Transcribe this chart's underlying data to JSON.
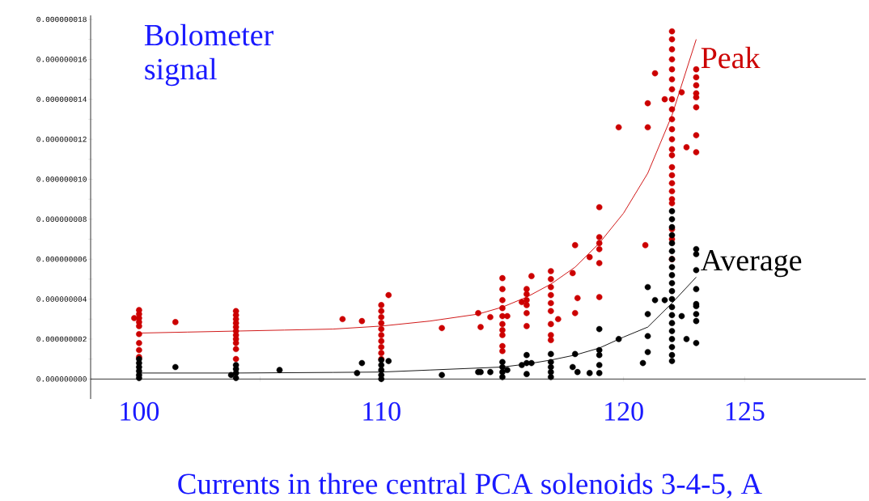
{
  "chart_data": {
    "type": "scatter",
    "annotations": [
      "Bolometer signal"
    ],
    "xlabel": "Currents in three central PCA solenoids 3-4-5, A",
    "xlim": [
      98,
      130
    ],
    "ylim": [
      -1e-09,
      1.82e-08
    ],
    "xticks": [
      100,
      {
        "value": 105,
        "label": null
      },
      110,
      {
        "value": 115,
        "label": null
      },
      120,
      125
    ],
    "yticks": [
      {
        "value": 0,
        "label": "0.000000000"
      },
      {
        "value": 1e-09,
        "label": null
      },
      {
        "value": 2e-09,
        "label": "0.000000002"
      },
      {
        "value": 3e-09,
        "label": null
      },
      {
        "value": 4e-09,
        "label": "0.000000004"
      },
      {
        "value": 5e-09,
        "label": null
      },
      {
        "value": 6e-09,
        "label": "0.000000006"
      },
      {
        "value": 7e-09,
        "label": null
      },
      {
        "value": 8e-09,
        "label": "0.000000008"
      },
      {
        "value": 9e-09,
        "label": null
      },
      {
        "value": 1e-08,
        "label": "0.000000010"
      },
      {
        "value": 1.1e-08,
        "label": null
      },
      {
        "value": 1.2e-08,
        "label": "0.000000012"
      },
      {
        "value": 1.3e-08,
        "label": null
      },
      {
        "value": 1.4e-08,
        "label": "0.000000014"
      },
      {
        "value": 1.5e-08,
        "label": null
      },
      {
        "value": 1.6e-08,
        "label": "0.000000016"
      },
      {
        "value": 1.7e-08,
        "label": null
      },
      {
        "value": 1.8e-08,
        "label": "0.000000018"
      }
    ],
    "series": [
      {
        "name": "Peak",
        "color": "#cc0000",
        "marker": "circle",
        "x": [
          100,
          100,
          100,
          100,
          100,
          100,
          100,
          100,
          100,
          99.8,
          101.5,
          104,
          104,
          104,
          104,
          104,
          104,
          104,
          104,
          104,
          104,
          104,
          108.4,
          109.2,
          110,
          110,
          110,
          110,
          110,
          110,
          110,
          110,
          110,
          110,
          110.3,
          112.5,
          114.0,
          114.1,
          114.5,
          115,
          115,
          115,
          115,
          115,
          115,
          115,
          115,
          115,
          115,
          115.2,
          116,
          116,
          116,
          116,
          116,
          116,
          116.2,
          115.8,
          117,
          117,
          117,
          117,
          117,
          117,
          117,
          117,
          117,
          117.3,
          118.0,
          118.0,
          117.9,
          118.1,
          118.6,
          119,
          119,
          119,
          119,
          119,
          119,
          119.8,
          120.9,
          121.0,
          121.0,
          121.3,
          121.7,
          122.4,
          122.6,
          122,
          122,
          122,
          122,
          122,
          122,
          122,
          122,
          122,
          122,
          122,
          122,
          122,
          122,
          122,
          122,
          122,
          122,
          122,
          122,
          122,
          122,
          122,
          123,
          123,
          123,
          123,
          123,
          123,
          123,
          123
        ],
        "values": [
          3.45e-09,
          3.25e-09,
          3.05e-09,
          2.85e-09,
          2.65e-09,
          2.25e-09,
          1.8e-09,
          1.45e-09,
          1.1e-09,
          3.05e-09,
          2.85e-09,
          3.4e-09,
          3.2e-09,
          3e-09,
          2.8e-09,
          2.6e-09,
          2.4e-09,
          2.2e-09,
          2e-09,
          1.8e-09,
          1.5e-09,
          1e-09,
          3e-09,
          2.9e-09,
          3.7e-09,
          3.4e-09,
          3.1e-09,
          2.8e-09,
          2.5e-09,
          2.2e-09,
          1.9e-09,
          1.6e-09,
          1.3e-09,
          1e-09,
          4.2e-09,
          2.55e-09,
          3.3e-09,
          2.6e-09,
          3.1e-09,
          5.05e-09,
          4.5e-09,
          3.95e-09,
          3.55e-09,
          3.15e-09,
          2.75e-09,
          2.45e-09,
          2.2e-09,
          1.65e-09,
          1.4e-09,
          3.15e-09,
          4.5e-09,
          4.25e-09,
          3.95e-09,
          3.7e-09,
          3.3e-09,
          2.65e-09,
          5.15e-09,
          3.85e-09,
          5.4e-09,
          5e-09,
          4.6e-09,
          4.2e-09,
          3.8e-09,
          3.4e-09,
          2.75e-09,
          2.2e-09,
          1.95e-09,
          3e-09,
          6.7e-09,
          3.3e-09,
          5.3e-09,
          4.05e-09,
          6.1e-09,
          8.6e-09,
          7.1e-09,
          6.8e-09,
          6.5e-09,
          5.8e-09,
          4.1e-09,
          1.26e-08,
          6.7e-09,
          1.38e-08,
          1.26e-08,
          1.53e-08,
          1.4e-08,
          1.435e-08,
          1.16e-08,
          1.74e-08,
          1.7e-08,
          1.65e-08,
          1.6e-08,
          1.55e-08,
          1.5e-08,
          1.45e-08,
          1.4e-08,
          1.35e-08,
          1.3e-08,
          1.25e-08,
          1.2e-08,
          1.15e-08,
          1.12e-08,
          1.06e-08,
          1.02e-08,
          9.8e-09,
          9.4e-09,
          9e-09,
          8.8e-09,
          7.5e-09,
          7e-09,
          6e-09,
          1.55e-08,
          1.51e-08,
          1.47e-08,
          1.43e-08,
          1.41e-08,
          1.36e-08,
          1.22e-08,
          1.135e-08
        ]
      },
      {
        "name": "Average",
        "color": "#000000",
        "marker": "circle",
        "x": [
          100,
          100,
          100,
          100,
          100,
          100,
          101.5,
          104,
          104,
          104,
          104,
          103.8,
          105.8,
          109.0,
          109.2,
          110,
          110,
          110,
          110,
          110,
          110.3,
          112.5,
          114.0,
          114.1,
          114.5,
          115,
          115,
          115,
          115,
          115.2,
          116,
          116,
          116,
          115.8,
          116.2,
          117,
          117,
          117,
          117,
          117,
          118.0,
          117.9,
          118.1,
          118.6,
          119,
          119,
          119,
          119,
          119,
          119.8,
          120.8,
          121.0,
          121.0,
          121.0,
          121.0,
          121.3,
          121.7,
          122.4,
          122.6,
          122,
          122,
          122,
          122,
          122,
          122,
          122,
          122,
          122,
          122,
          122,
          122,
          122,
          122,
          122,
          122,
          122,
          122,
          122,
          122,
          123,
          123,
          123,
          123,
          123,
          123,
          123,
          123,
          123
        ],
        "values": [
          1e-09,
          8e-10,
          6e-10,
          4e-10,
          2e-10,
          5e-11,
          6e-10,
          7e-10,
          5e-10,
          3e-10,
          5e-11,
          2e-10,
          4.5e-10,
          3e-10,
          8e-10,
          9.5e-10,
          7e-10,
          4.5e-10,
          2e-10,
          0,
          9e-10,
          2e-10,
          3.5e-10,
          3.5e-10,
          3.5e-10,
          8.5e-10,
          6e-10,
          3.5e-10,
          1e-10,
          4.5e-10,
          1.2e-09,
          8e-10,
          2.5e-10,
          7e-10,
          8e-10,
          1.25e-09,
          8.5e-10,
          6e-10,
          3.5e-10,
          1e-10,
          1.25e-09,
          6e-10,
          3.5e-10,
          3e-10,
          2.5e-09,
          1.45e-09,
          1.2e-09,
          7e-10,
          3e-10,
          2e-09,
          8e-10,
          4.6e-09,
          3.25e-09,
          2.15e-09,
          1.35e-09,
          3.95e-09,
          3.95e-09,
          3.15e-09,
          2e-09,
          8.4e-09,
          8e-09,
          7.6e-09,
          7.2e-09,
          6.8e-09,
          6.4e-09,
          6e-09,
          5.6e-09,
          5.2e-09,
          4.8e-09,
          4.4e-09,
          4e-09,
          3.6e-09,
          3.2e-09,
          2.8e-09,
          2.4e-09,
          2e-09,
          1.6e-09,
          1.2e-09,
          9e-10,
          6.5e-09,
          6.25e-09,
          5.45e-09,
          4.5e-09,
          3.75e-09,
          3.65e-09,
          3.25e-09,
          2.9e-09,
          1.8e-09
        ]
      },
      {
        "type": "line",
        "color": "#cc0000",
        "marker": "none",
        "x": [
          100,
          102,
          104,
          106,
          108,
          110,
          112,
          114,
          115,
          116,
          117,
          118,
          119,
          120,
          121,
          122,
          123
        ],
        "values": [
          2.3e-09,
          2.35e-09,
          2.4e-09,
          2.45e-09,
          2.5e-09,
          2.65e-09,
          2.9e-09,
          3.25e-09,
          3.6e-09,
          4.1e-09,
          4.75e-09,
          5.6e-09,
          6.8e-09,
          8.3e-09,
          1.03e-08,
          1.32e-08,
          1.7e-08
        ]
      },
      {
        "type": "line",
        "color": "#000000",
        "marker": "none",
        "x": [
          100,
          104,
          108,
          110,
          112,
          114,
          115,
          116,
          117,
          118,
          119,
          120,
          121,
          122,
          123
        ],
        "values": [
          3e-10,
          3e-10,
          3.3e-10,
          3.5e-10,
          4.5e-10,
          5.5e-10,
          6e-10,
          7.5e-10,
          9.5e-10,
          1.2e-09,
          1.55e-09,
          2.1e-09,
          2.6e-09,
          3.8e-09,
          5.1e-09
        ]
      }
    ]
  }
}
